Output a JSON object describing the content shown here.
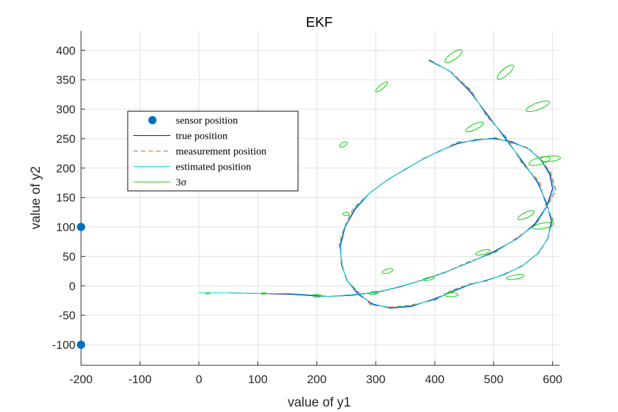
{
  "chart_data": {
    "type": "line",
    "title": "EKF",
    "xlabel": "value of y1",
    "ylabel": "value of y2",
    "xlim": [
      -200,
      612
    ],
    "ylim": [
      -135,
      433
    ],
    "xticks": [
      -200,
      -100,
      0,
      100,
      200,
      300,
      400,
      500,
      600
    ],
    "yticks": [
      -100,
      -50,
      0,
      50,
      100,
      150,
      200,
      250,
      300,
      350,
      400
    ],
    "grid": true,
    "legend_position": "upper-left",
    "series": [
      {
        "name": "sensor position",
        "type": "scatter",
        "color": "#0072BD",
        "x": [
          -200,
          -200
        ],
        "y": [
          100,
          -100
        ]
      },
      {
        "name": "true position",
        "type": "line",
        "color": "#0000AA",
        "dash": "solid",
        "x": [
          0,
          50,
          100,
          150,
          200,
          220,
          260,
          300,
          340,
          380,
          420,
          460,
          500,
          540,
          570,
          590,
          600,
          595,
          580,
          560,
          530,
          500,
          470,
          440,
          410,
          380,
          350,
          320,
          290,
          265,
          248,
          240,
          242,
          252,
          270,
          295,
          325,
          360,
          400,
          430,
          460,
          490,
          520,
          550,
          575,
          592,
          598,
          590,
          575,
          550,
          520,
          490,
          460,
          425,
          390
        ],
        "y": [
          -12,
          -12,
          -13,
          -14,
          -17,
          -18,
          -16,
          -11,
          -2,
          10,
          24,
          40,
          58,
          80,
          105,
          135,
          165,
          190,
          214,
          232,
          245,
          250,
          248,
          242,
          230,
          215,
          198,
          180,
          158,
          130,
          100,
          68,
          35,
          8,
          -14,
          -31,
          -38,
          -35,
          -22,
          -10,
          2,
          10,
          20,
          35,
          55,
          80,
          110,
          140,
          175,
          210,
          250,
          290,
          330,
          365,
          383
        ]
      },
      {
        "name": "measurement position",
        "type": "line",
        "color": "#D95319",
        "dash": "dashed",
        "x": [
          0,
          50,
          100,
          150,
          200,
          220,
          262,
          302,
          342,
          382,
          418,
          458,
          502,
          538,
          572,
          592,
          606,
          597,
          583,
          558,
          528,
          502,
          468,
          438,
          408,
          382,
          348,
          322,
          288,
          262,
          246,
          238,
          244,
          250,
          272,
          292,
          327,
          358,
          402,
          428,
          462,
          488,
          522,
          548,
          578,
          590,
          601,
          588,
          578,
          548,
          522,
          488,
          462,
          428,
          390
        ],
        "y": [
          -12,
          -12,
          -13,
          -13,
          -16,
          -18,
          -15,
          -12,
          -1,
          11,
          23,
          41,
          56,
          81,
          104,
          137,
          162,
          192,
          212,
          235,
          243,
          252,
          246,
          244,
          228,
          217,
          196,
          182,
          156,
          132,
          98,
          70,
          33,
          10,
          -12,
          -33,
          -36,
          -33,
          -24,
          -8,
          4,
          8,
          22,
          33,
          57,
          78,
          112,
          138,
          177,
          208,
          252,
          288,
          332,
          363,
          385
        ]
      },
      {
        "name": "estimated position",
        "type": "line",
        "color": "#00E0E0",
        "dash": "solid",
        "x": [
          0,
          50,
          100,
          150,
          200,
          220,
          261,
          301,
          341,
          381,
          419,
          459,
          501,
          539,
          571,
          591,
          603,
          596,
          581,
          559,
          529,
          501,
          469,
          439,
          409,
          381,
          349,
          321,
          289,
          264,
          247,
          239,
          243,
          251,
          271,
          294,
          326,
          359,
          401,
          429,
          461,
          489,
          521,
          549,
          576,
          591,
          600,
          589,
          576,
          549,
          521,
          489,
          461,
          426,
          390
        ],
        "y": [
          -12,
          -12,
          -13,
          -13,
          -16,
          -18,
          -15,
          -11,
          -1,
          10,
          23,
          40,
          57,
          80,
          104,
          136,
          164,
          191,
          213,
          233,
          244,
          251,
          247,
          243,
          229,
          216,
          197,
          181,
          157,
          131,
          99,
          69,
          34,
          9,
          -13,
          -32,
          -37,
          -34,
          -23,
          -9,
          3,
          9,
          21,
          34,
          56,
          79,
          111,
          139,
          176,
          209,
          251,
          289,
          331,
          364,
          384
        ]
      },
      {
        "name": "3σ",
        "type": "ellipse",
        "color": "#00CC00",
        "ellipses": [
          {
            "cx": 15,
            "cy": -13,
            "rx": 3,
            "ry": 1,
            "rot": 0
          },
          {
            "cx": 110,
            "cy": -13,
            "rx": 4,
            "ry": 1,
            "rot": 0
          },
          {
            "cx": 200,
            "cy": -17,
            "rx": 6,
            "ry": 2,
            "rot": 0
          },
          {
            "cx": 297,
            "cy": -12,
            "rx": 7,
            "ry": 2,
            "rot": -10
          },
          {
            "cx": 320,
            "cy": 25,
            "rx": 8,
            "ry": 3,
            "rot": -15
          },
          {
            "cx": 390,
            "cy": 12,
            "rx": 8,
            "ry": 2,
            "rot": -10
          },
          {
            "cx": 428,
            "cy": -15,
            "rx": 10,
            "ry": 3,
            "rot": 0
          },
          {
            "cx": 482,
            "cy": 57,
            "rx": 11,
            "ry": 3,
            "rot": -15
          },
          {
            "cx": 537,
            "cy": 15,
            "rx": 13,
            "ry": 3,
            "rot": -10
          },
          {
            "cx": 555,
            "cy": 120,
            "rx": 13,
            "ry": 4,
            "rot": -25
          },
          {
            "cx": 584,
            "cy": 102,
            "rx": 16,
            "ry": 4,
            "rot": -10
          },
          {
            "cx": 578,
            "cy": 212,
            "rx": 16,
            "ry": 5,
            "rot": -15
          },
          {
            "cx": 596,
            "cy": 216,
            "rx": 15,
            "ry": 4,
            "rot": -5
          },
          {
            "cx": 575,
            "cy": 305,
            "rx": 18,
            "ry": 5,
            "rot": -20
          },
          {
            "cx": 520,
            "cy": 363,
            "rx": 15,
            "ry": 5,
            "rot": -40
          },
          {
            "cx": 432,
            "cy": 390,
            "rx": 15,
            "ry": 5,
            "rot": -35
          },
          {
            "cx": 468,
            "cy": 270,
            "rx": 14,
            "ry": 4,
            "rot": -25
          },
          {
            "cx": 310,
            "cy": 338,
            "rx": 11,
            "ry": 3,
            "rot": -40
          },
          {
            "cx": 245,
            "cy": 240,
            "rx": 6,
            "ry": 3,
            "rot": -30
          },
          {
            "cx": 250,
            "cy": 122,
            "rx": 5,
            "ry": 2,
            "rot": 0
          }
        ]
      }
    ]
  }
}
